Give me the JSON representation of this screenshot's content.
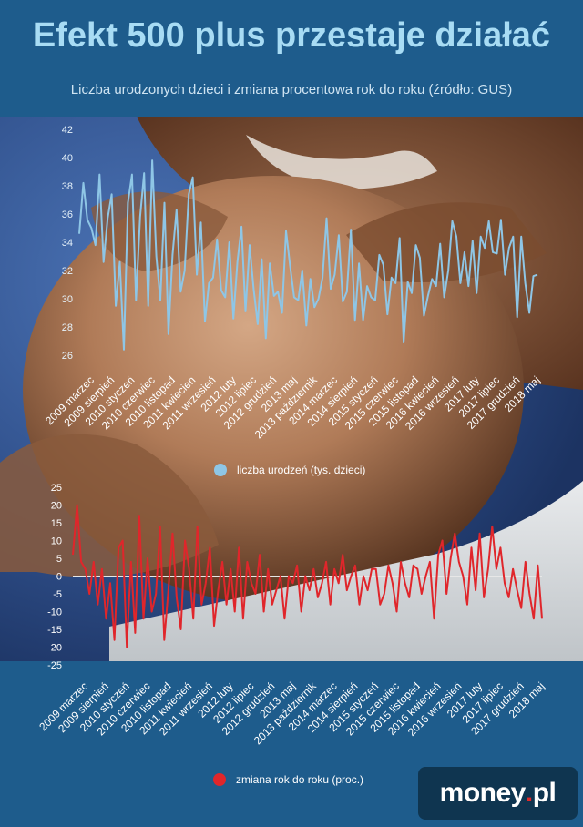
{
  "title": "Efekt 500 plus przestaje działać",
  "subtitle": "Liczba urodzonych dzieci i zmiana procentowa rok do roku (źródło: GUS)",
  "logo": {
    "main": "money",
    "dot": ".",
    "suffix": "pl"
  },
  "chart_data": [
    {
      "type": "line",
      "legend_placement": "bottom",
      "series": [
        {
          "name": "liczba urodzeń (tys. dzieci)",
          "color": "#8ec6e6"
        }
      ],
      "ylim": [
        26,
        42
      ],
      "yticks": [
        26,
        28,
        30,
        32,
        34,
        36,
        38,
        40,
        42
      ],
      "xtick_labels": [
        "2009 marzec",
        "2009 sierpień",
        "2010 styczeń",
        "2010 czerwiec",
        "2010 listopad",
        "2011 kwiecień",
        "2011 wrzesień",
        "2012 luty",
        "2012 lipiec",
        "2012 grudzień",
        "2013 maj",
        "2013 październik",
        "2014 marzec",
        "2014 sierpień",
        "2015 styczeń",
        "2015 czerwiec",
        "2015 listopad",
        "2016 kwiecień",
        "2016 wrzesień",
        "2017 luty",
        "2017 lipiec",
        "2017 grudzień",
        "2018 maj"
      ],
      "start_month": "2009-01",
      "values": [
        34.6,
        38.2,
        35.6,
        35.0,
        33.8,
        38.8,
        32.6,
        35.7,
        37.4,
        29.5,
        32.6,
        26.4,
        36.8,
        38.8,
        29.9,
        35.8,
        38.9,
        29.5,
        39.8,
        33.0,
        29.9,
        36.8,
        27.5,
        33.1,
        36.3,
        30.5,
        32.0,
        37.4,
        38.6,
        31.7,
        35.4,
        28.4,
        31.1,
        31.5,
        34.2,
        30.6,
        30.1,
        34.0,
        28.6,
        32.6,
        35.1,
        29.1,
        33.8,
        30.7,
        28.2,
        32.8,
        27.2,
        32.5,
        30.2,
        30.5,
        29.0,
        34.8,
        32.3,
        30.1,
        29.9,
        32.0,
        28.1,
        31.4,
        29.4,
        30.0,
        31.5,
        35.7,
        30.7,
        31.7,
        34.5,
        29.8,
        30.5,
        34.9,
        28.5,
        32.5,
        28.5,
        30.9,
        30.1,
        29.9,
        33.1,
        32.4,
        28.9,
        31.5,
        31.1,
        34.3,
        26.9,
        31.2,
        30.4,
        33.8,
        32.9,
        28.8,
        30.2,
        31.4,
        30.9,
        33.9,
        30.1,
        32.0,
        35.5,
        34.4,
        31.1,
        33.3,
        30.9,
        34.1,
        30.4,
        34.4,
        33.6,
        35.5,
        33.3,
        33.2,
        35.6,
        31.7,
        33.6,
        34.4,
        28.7,
        34.4,
        31.1,
        29.0,
        31.6,
        31.7
      ]
    },
    {
      "type": "line",
      "legend_placement": "bottom",
      "series": [
        {
          "name": "zmiana rok do roku (proc.)",
          "color": "#e0262b"
        }
      ],
      "ylim": [
        -25,
        25
      ],
      "yticks": [
        -25,
        -20,
        -15,
        -10,
        -5,
        0,
        5,
        10,
        15,
        20,
        25
      ],
      "xtick_labels": [
        "2009 marzec",
        "2009 sierpień",
        "2010 styczeń",
        "2010 czerwiec",
        "2010 listopad",
        "2011 kwiecień",
        "2011 wrzesień",
        "2012 luty",
        "2012 lipiec",
        "2012 grudzień",
        "2013 maj",
        "2013 październik",
        "2014 marzec",
        "2014 sierpień",
        "2015 styczeń",
        "2015 czerwiec",
        "2015 listopad",
        "2016 kwiecień",
        "2016 wrzesień",
        "2017 luty",
        "2017 lipiec",
        "2017 grudzień",
        "2018 maj"
      ],
      "start_month": "2009-01",
      "values": [
        6,
        20,
        4,
        2,
        -5,
        4,
        -8,
        2,
        -12,
        -2,
        -18,
        8,
        10,
        -20,
        4,
        -16,
        17,
        -12,
        5,
        -10,
        -5,
        14,
        -18,
        -4,
        12,
        -6,
        -15,
        10,
        2,
        -12,
        14,
        -8,
        -2,
        8,
        -14,
        -4,
        4,
        -8,
        2,
        -10,
        8,
        -12,
        4,
        -2,
        -5,
        6,
        -10,
        2,
        -8,
        -4,
        0,
        -12,
        0,
        -2,
        3,
        -10,
        0,
        -4,
        2,
        -6,
        -2,
        4,
        -8,
        2,
        -2,
        6,
        -4,
        0,
        3,
        -8,
        0,
        -4,
        2,
        2,
        -8,
        -5,
        3,
        -2,
        -10,
        4,
        -2,
        -6,
        3,
        2,
        -5,
        0,
        4,
        -12,
        6,
        10,
        -5,
        5,
        12,
        4,
        0,
        -8,
        8,
        -4,
        12,
        -6,
        2,
        14,
        2,
        8,
        -2,
        -6,
        2,
        -4,
        -9,
        4,
        -5,
        -12,
        3,
        -12
      ]
    }
  ]
}
